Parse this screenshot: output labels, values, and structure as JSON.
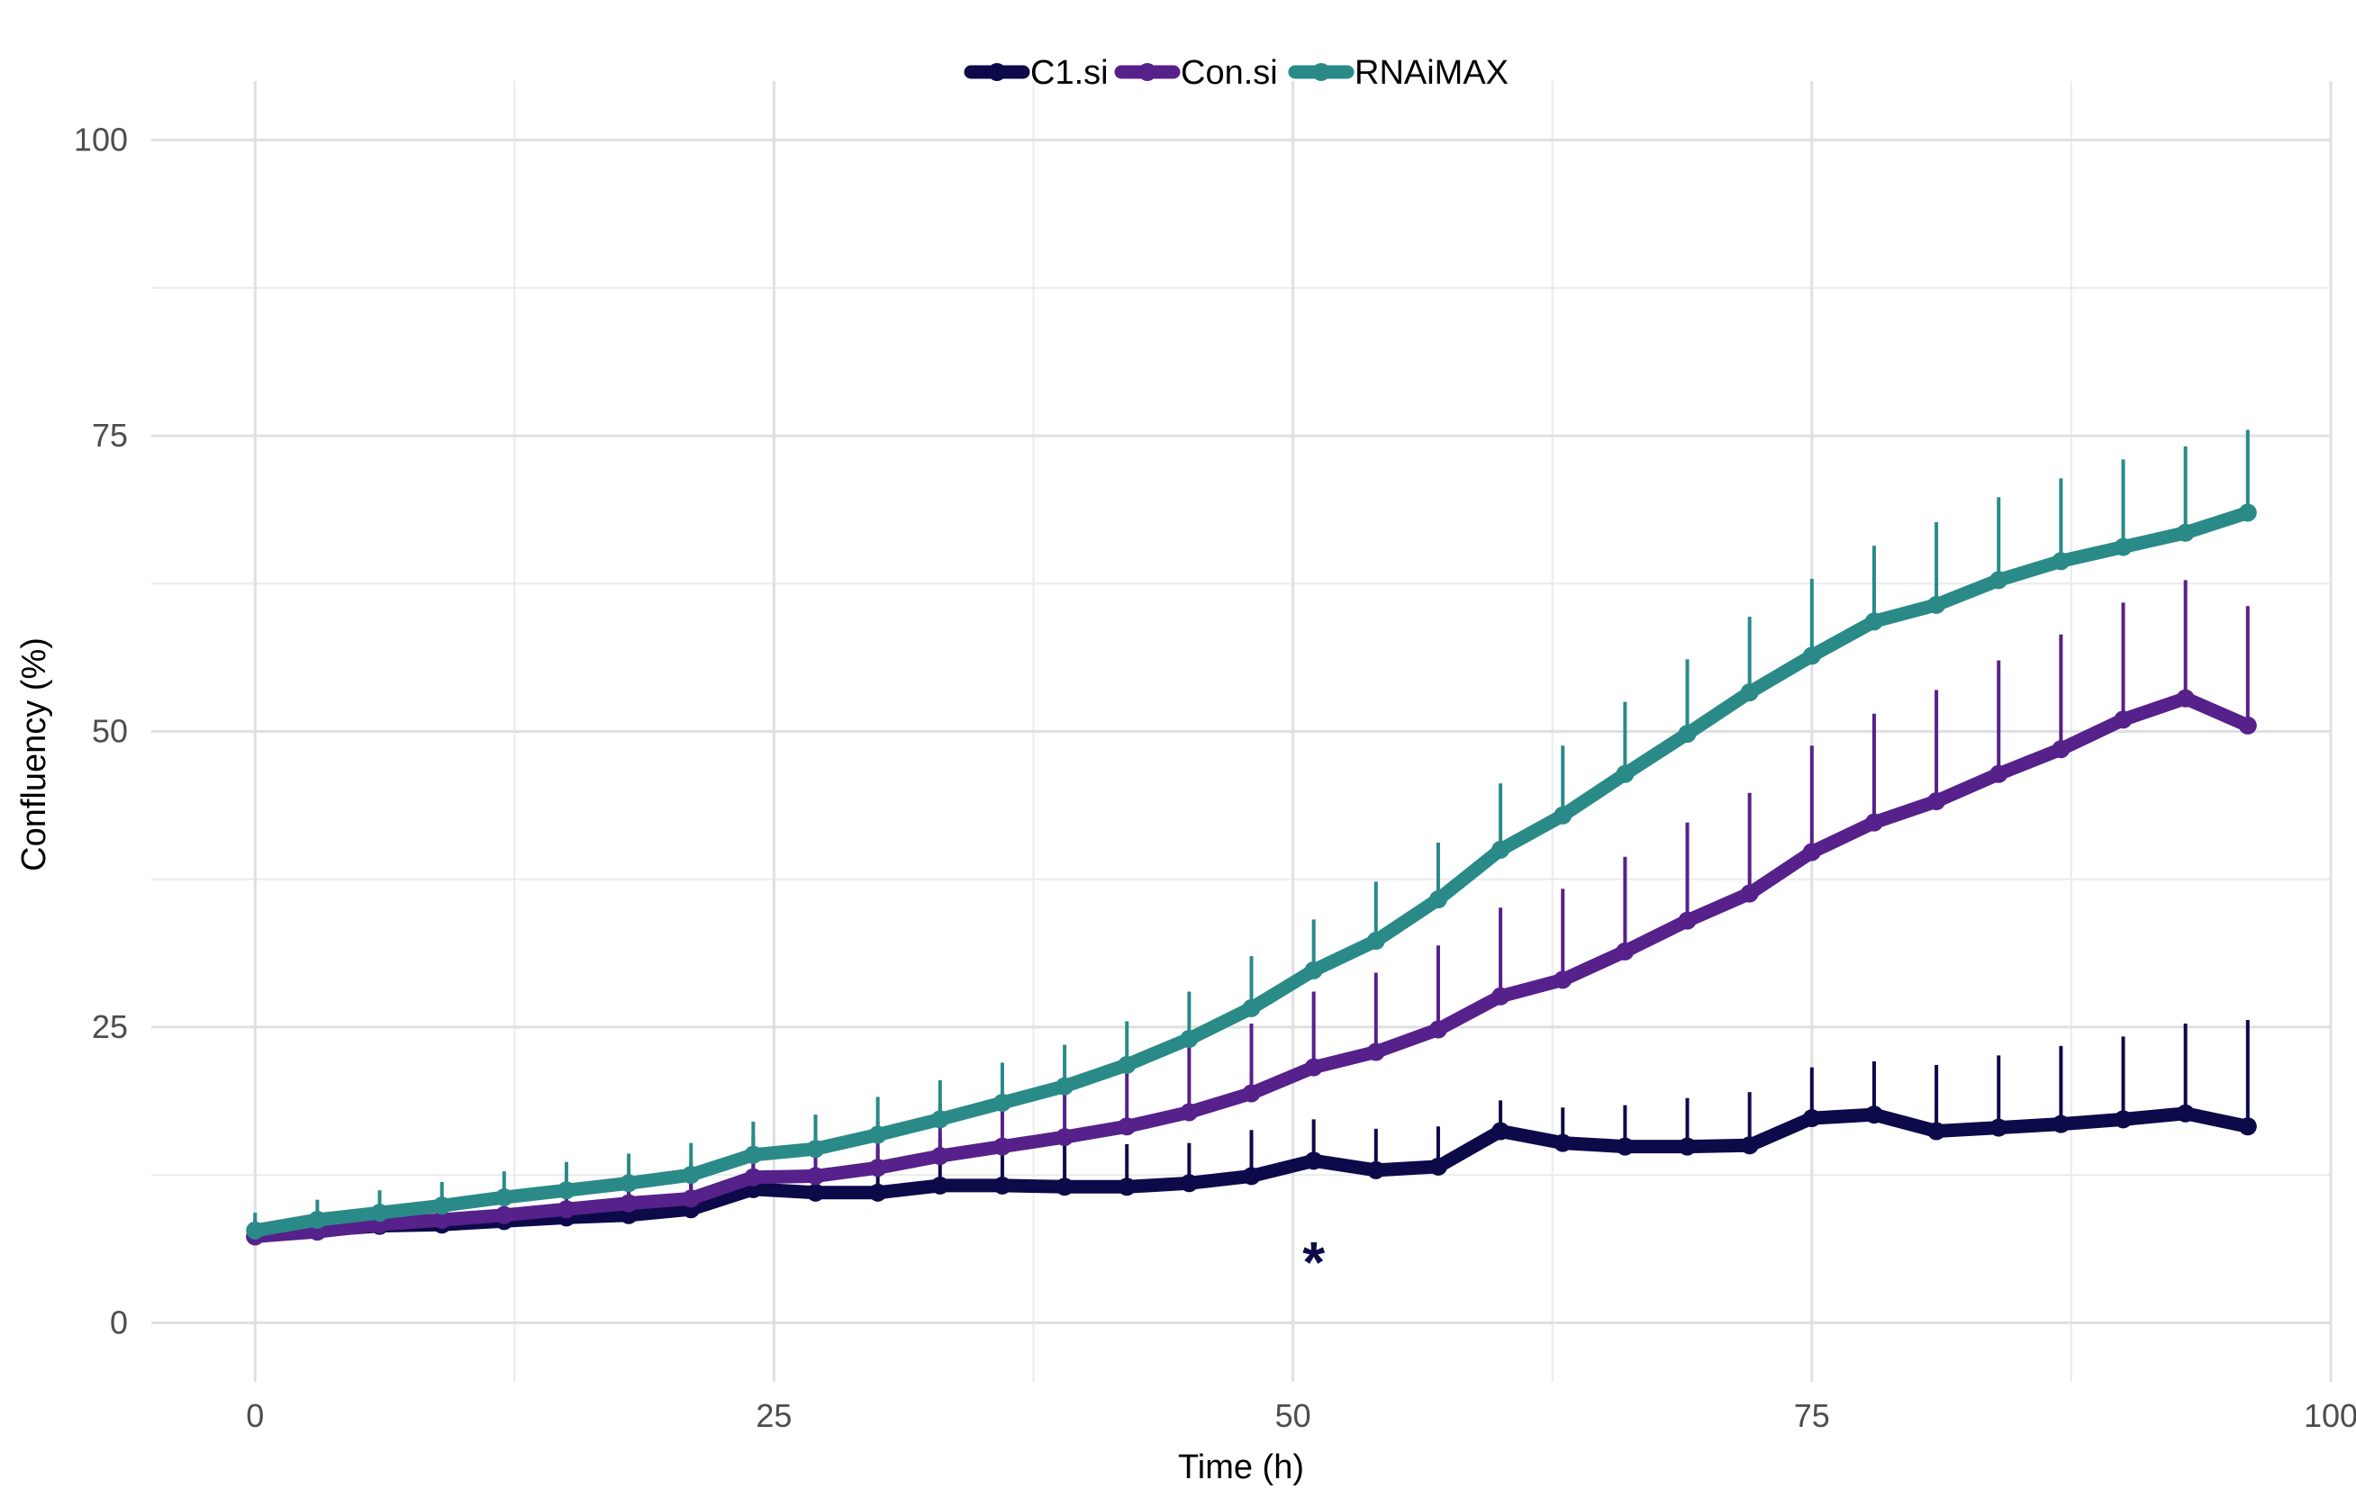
{
  "chart_data": {
    "type": "line",
    "title": "",
    "xlabel": "Time (h)",
    "ylabel": "Confluency (%)",
    "xlim": [
      -5,
      100
    ],
    "ylim": [
      -5,
      105
    ],
    "x_ticks": [
      "0",
      "25",
      "50",
      "75",
      "100"
    ],
    "y_ticks": [
      "0",
      "25",
      "50",
      "75",
      "100"
    ],
    "grid": true,
    "legend_position": "top",
    "x": [
      0,
      3,
      6,
      9,
      12,
      15,
      18,
      21,
      24,
      27,
      30,
      33,
      36,
      39,
      42,
      45,
      48,
      51,
      54,
      57,
      60,
      63,
      66,
      69,
      72,
      75,
      78,
      81,
      84,
      87,
      90,
      93,
      96
    ],
    "series": [
      {
        "name": "C1.si",
        "color": "#0d0a4a",
        "values": [
          7.3,
          7.8,
          8.2,
          8.3,
          8.6,
          8.9,
          9.1,
          9.6,
          11.3,
          11.0,
          11.0,
          11.6,
          11.6,
          11.5,
          11.5,
          11.8,
          12.4,
          13.7,
          12.9,
          13.2,
          16.2,
          15.2,
          14.9,
          14.9,
          15.0,
          17.3,
          17.6,
          16.2,
          16.5,
          16.8,
          17.2,
          17.7,
          16.6
        ],
        "error_upper": [
          8.7,
          9.5,
          10.0,
          10.3,
          10.8,
          11.3,
          11.6,
          12.4,
          14.7,
          14.6,
          14.8,
          15.6,
          15.6,
          15.3,
          15.1,
          15.2,
          16.3,
          17.2,
          16.4,
          16.6,
          18.8,
          18.2,
          18.4,
          19.0,
          19.5,
          21.6,
          22.1,
          21.8,
          22.6,
          23.4,
          24.2,
          25.3,
          25.6
        ]
      },
      {
        "name": "Con.si",
        "color": "#56218a",
        "values": [
          7.3,
          7.7,
          8.3,
          8.7,
          9.1,
          9.6,
          10.1,
          10.5,
          12.3,
          12.4,
          13.1,
          14.1,
          14.9,
          15.7,
          16.6,
          17.8,
          19.4,
          21.6,
          22.9,
          24.8,
          27.6,
          29.0,
          31.4,
          34.0,
          36.3,
          39.8,
          42.3,
          44.1,
          46.4,
          48.5,
          51.0,
          52.8,
          50.5
        ],
        "error_upper": [
          8.5,
          9.3,
          10.2,
          10.8,
          11.4,
          12.2,
          12.9,
          13.6,
          15.7,
          16.0,
          17.0,
          18.5,
          19.6,
          20.6,
          21.8,
          23.3,
          25.3,
          28.0,
          29.6,
          31.9,
          35.1,
          36.7,
          39.4,
          42.3,
          44.8,
          48.8,
          51.5,
          53.5,
          56.0,
          58.2,
          60.9,
          62.8,
          60.6
        ]
      },
      {
        "name": "RNAiMAX",
        "color": "#2a8a88",
        "values": [
          7.8,
          8.7,
          9.3,
          9.9,
          10.6,
          11.2,
          11.8,
          12.5,
          14.2,
          14.7,
          15.9,
          17.2,
          18.6,
          20.0,
          21.8,
          24.0,
          26.6,
          29.8,
          32.3,
          35.8,
          40.0,
          42.9,
          46.4,
          49.8,
          53.3,
          56.4,
          59.3,
          60.7,
          62.8,
          64.4,
          65.6,
          66.8,
          68.5
        ],
        "error_upper": [
          9.3,
          10.4,
          11.2,
          11.9,
          12.8,
          13.6,
          14.3,
          15.2,
          17.0,
          17.6,
          19.1,
          20.5,
          22.0,
          23.5,
          25.5,
          28.0,
          31.0,
          34.1,
          37.3,
          40.6,
          45.6,
          48.8,
          52.5,
          56.1,
          59.7,
          62.9,
          65.7,
          67.7,
          69.8,
          71.4,
          73.0,
          74.1,
          75.5
        ]
      }
    ],
    "annotations": [
      {
        "text": "*",
        "x": 51,
        "y": 6.5
      }
    ]
  }
}
